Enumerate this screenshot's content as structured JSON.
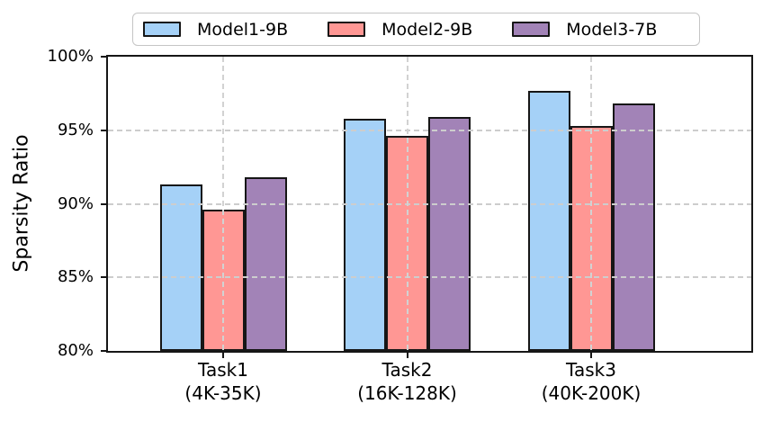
{
  "chart_data": {
    "type": "bar",
    "title": "",
    "xlabel": "",
    "ylabel": "Sparsity Ratio",
    "unit": "%",
    "ylim": [
      80,
      100
    ],
    "yticks": [
      {
        "value": 80,
        "label": "80%"
      },
      {
        "value": 85,
        "label": "85%"
      },
      {
        "value": 90,
        "label": "90%"
      },
      {
        "value": 95,
        "label": "95%"
      },
      {
        "value": 100,
        "label": "100%"
      }
    ],
    "grid": "dashed-both-axes-over-bars",
    "legend_position": "top-center-horizontal",
    "categories": [
      {
        "line1": "Task1",
        "line2": "(4K-35K)"
      },
      {
        "line1": "Task2",
        "line2": "(16K-128K)"
      },
      {
        "line1": "Task3",
        "line2": "(40K-200K)"
      }
    ],
    "series": [
      {
        "name": "Model1-9B",
        "color": "#a5d1f7",
        "values": [
          91.3,
          95.8,
          97.7
        ]
      },
      {
        "name": "Model2-9B",
        "color": "#ff9794",
        "values": [
          89.6,
          94.6,
          95.3
        ]
      },
      {
        "name": "Model3-7B",
        "color": "#a283b7",
        "values": [
          91.8,
          95.9,
          96.8
        ]
      }
    ],
    "style": {
      "bar_edge_color": "#161616",
      "grid_color": "#cdcdcd",
      "legend_border_color": "#c5c5c5",
      "background": "#ffffff"
    }
  }
}
